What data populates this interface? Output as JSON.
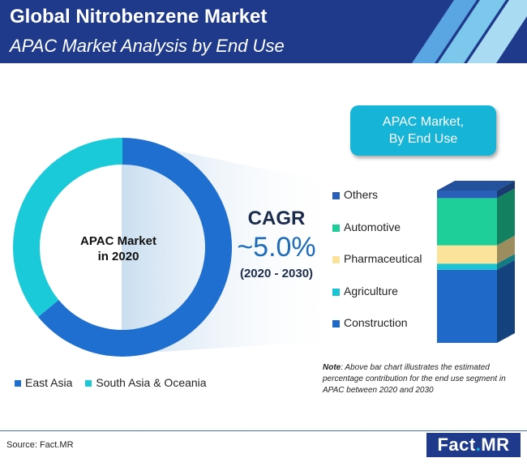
{
  "header": {
    "title": "Global Nitrobenzene Market",
    "subtitle": "APAC Market Analysis by End Use"
  },
  "colors": {
    "header_bg": "#1f3a8a",
    "accent_cyan": "#16b5d8",
    "east_asia": "#1e6fd0",
    "south_asia_oceania": "#1bcad8"
  },
  "chart_data": [
    {
      "type": "pie",
      "subtype": "donut",
      "center_label": [
        "APAC Market",
        "in 2020"
      ],
      "categories": [
        "East Asia",
        "South Asia & Oceania"
      ],
      "values": [
        64,
        36
      ],
      "unit": "%",
      "colors": [
        "#1e6fd0",
        "#1bcad8"
      ],
      "legend": "bottom"
    },
    {
      "type": "bar",
      "subtype": "stacked-100",
      "title": [
        "APAC Market,",
        "By End Use"
      ],
      "categories": [
        "APAC"
      ],
      "series": [
        {
          "name": "Construction",
          "values": [
            48
          ],
          "color": "#1f6ac9"
        },
        {
          "name": "Agriculture",
          "values": [
            4
          ],
          "color": "#1bc4d3"
        },
        {
          "name": "Pharmaceutical",
          "values": [
            12
          ],
          "color": "#fbe49a"
        },
        {
          "name": "Automotive",
          "values": [
            31
          ],
          "color": "#1ecf9a"
        },
        {
          "name": "Others",
          "values": [
            5
          ],
          "color": "#2a5fb8"
        }
      ],
      "legend_order": [
        "Others",
        "Automotive",
        "Pharmaceutical",
        "Agriculture",
        "Construction"
      ],
      "legend": "left"
    }
  ],
  "cagr": {
    "label": "CAGR",
    "value": "~5.0%",
    "range": "(2020 - 2030)"
  },
  "note": {
    "label": "Note",
    "text": ": Above bar chart illustrates the estimated percentage contribution for the end use segment in APAC between 2020 and 2030"
  },
  "footer": {
    "source": "Source: Fact.MR",
    "logo_left": "Fact",
    "logo_dot": ".",
    "logo_right": "MR"
  }
}
